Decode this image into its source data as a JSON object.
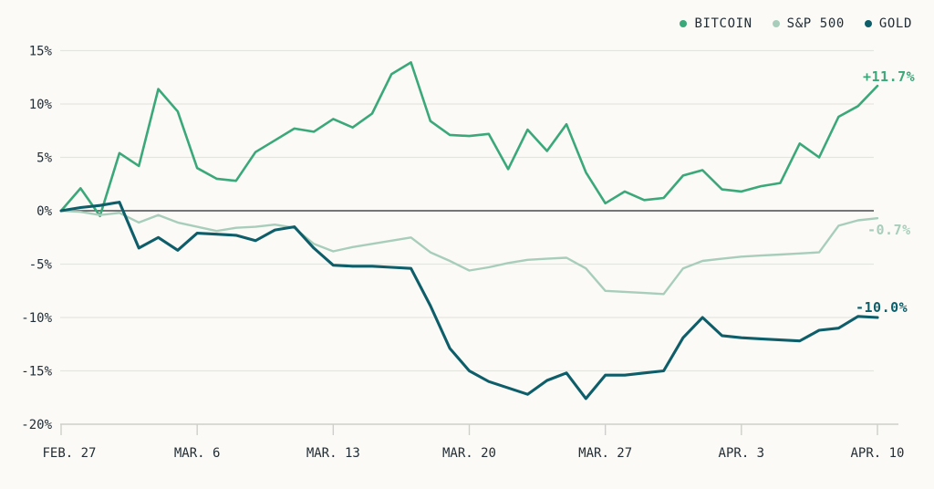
{
  "style": {
    "background": "#fbfaf7",
    "text": "#222d35",
    "grid": "#e5e5e0",
    "zero_line": "#46494c",
    "axis": "#cfcfc9"
  },
  "chart_data": {
    "type": "line",
    "title": "",
    "x_axis": "days from Feb. 27 to Apr. 10 (daily points)",
    "ylabel": "percent change",
    "ylim": [
      -20,
      15
    ],
    "grid": "horizontal only",
    "legend_position": "top-right",
    "y_ticks": [
      {
        "v": 15,
        "label": "15%"
      },
      {
        "v": 10,
        "label": "10%"
      },
      {
        "v": 5,
        "label": "5%"
      },
      {
        "v": 0,
        "label": "0%"
      },
      {
        "v": -5,
        "label": "-5%"
      },
      {
        "v": -10,
        "label": "-10%"
      },
      {
        "v": -15,
        "label": "-15%"
      },
      {
        "v": -20,
        "label": "-20%"
      }
    ],
    "x_ticks": [
      {
        "day": 0,
        "label": "FEB. 27"
      },
      {
        "day": 7,
        "label": "MAR. 6"
      },
      {
        "day": 14,
        "label": "MAR. 13"
      },
      {
        "day": 21,
        "label": "MAR. 20"
      },
      {
        "day": 28,
        "label": "MAR. 27"
      },
      {
        "day": 35,
        "label": "APR. 3"
      },
      {
        "day": 42,
        "label": "APR. 10"
      }
    ],
    "series": [
      {
        "name": "BITCOIN",
        "color": "#3aa878",
        "end_label": "+11.7%",
        "values": [
          0.0,
          2.1,
          -0.5,
          5.4,
          4.2,
          11.4,
          9.3,
          4.0,
          3.0,
          2.8,
          5.5,
          6.6,
          7.7,
          7.4,
          8.6,
          7.8,
          9.1,
          12.8,
          13.9,
          8.4,
          7.1,
          7.0,
          7.2,
          3.9,
          7.6,
          5.6,
          8.1,
          3.6,
          0.7,
          1.8,
          1.0,
          1.2,
          3.3,
          3.8,
          2.0,
          1.8,
          2.3,
          2.6,
          6.3,
          5.0,
          8.8,
          9.8,
          11.7
        ]
      },
      {
        "name": "S&P 500",
        "color": "#a8cebb",
        "end_label": "-0.7%",
        "values": [
          0.0,
          -0.1,
          -0.4,
          -0.2,
          -1.1,
          -0.4,
          -1.1,
          -1.5,
          -1.9,
          -1.6,
          -1.5,
          -1.3,
          -1.6,
          -3.1,
          -3.8,
          -3.4,
          -3.1,
          -2.8,
          -2.5,
          -3.9,
          -4.7,
          -5.6,
          -5.3,
          -4.9,
          -4.6,
          -4.5,
          -4.4,
          -5.4,
          -7.5,
          -7.6,
          -7.7,
          -7.8,
          -5.4,
          -4.7,
          -4.5,
          -4.3,
          -4.2,
          -4.1,
          -4.0,
          -3.9,
          -1.4,
          -0.9,
          -0.7
        ]
      },
      {
        "name": "GOLD",
        "color": "#0e5e6a",
        "end_label": "-10.0%",
        "values": [
          0.0,
          0.3,
          0.5,
          0.8,
          -3.5,
          -2.5,
          -3.7,
          -2.1,
          -2.2,
          -2.3,
          -2.8,
          -1.8,
          -1.5,
          -3.5,
          -5.1,
          -5.2,
          -5.2,
          -5.3,
          -5.4,
          -8.9,
          -12.9,
          -15.0,
          -16.0,
          -16.6,
          -17.2,
          -15.9,
          -15.2,
          -17.6,
          -15.4,
          -15.4,
          -15.2,
          -15.0,
          -11.9,
          -10.0,
          -11.7,
          -11.9,
          -12.0,
          -12.1,
          -12.2,
          -11.2,
          -11.0,
          -9.9,
          -10.0
        ]
      }
    ]
  }
}
